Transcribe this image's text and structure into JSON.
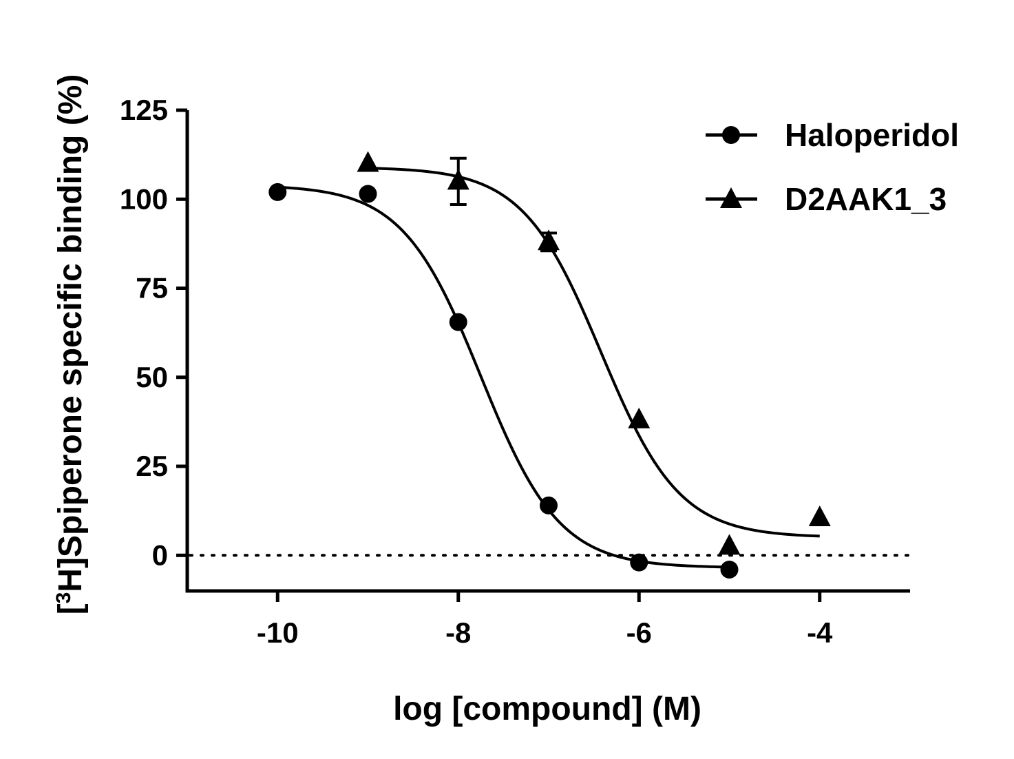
{
  "chart_data": {
    "type": "scatter",
    "title": "",
    "xlabel": "log [compound] (M)",
    "ylabel": "Spiperone specific binding (%)",
    "ylabel_prefix": "[",
    "ylabel_superscript": "3",
    "ylabel_element": "H]",
    "xlim": [
      -11.0,
      -3.0
    ],
    "ylim": [
      -10,
      125
    ],
    "x_ticks": [
      -10,
      -8,
      -6,
      -4
    ],
    "x_tick_labels": [
      "-10",
      "-8",
      "-6",
      "-4"
    ],
    "y_ticks": [
      0,
      25,
      50,
      75,
      100,
      125
    ],
    "y_tick_labels": [
      "0",
      "25",
      "50",
      "75",
      "100",
      "125"
    ],
    "reference_line": {
      "y": 0,
      "style": "dotted"
    },
    "legend_position": "top-right",
    "grid": false,
    "series": [
      {
        "name": "Haloperidol",
        "marker": "circle",
        "points": [
          {
            "x": -10,
            "y": 102,
            "err": 0
          },
          {
            "x": -9,
            "y": 101.5,
            "err": 0
          },
          {
            "x": -8,
            "y": 65.5,
            "err": 0
          },
          {
            "x": -7,
            "y": 14,
            "err": 0
          },
          {
            "x": -6,
            "y": -2,
            "err": 0
          },
          {
            "x": -5,
            "y": -4,
            "err": 0
          }
        ],
        "fit": {
          "top": 104,
          "bottom": -3.5,
          "logEC50": -7.75,
          "hill": -1.0,
          "x_range": [
            -10,
            -5
          ]
        }
      },
      {
        "name": "D2AAK1_3",
        "marker": "triangle",
        "points": [
          {
            "x": -9,
            "y": 110,
            "err": 0
          },
          {
            "x": -8,
            "y": 105,
            "err": 6.5
          },
          {
            "x": -7,
            "y": 88,
            "err": 2.5
          },
          {
            "x": -6,
            "y": 38,
            "err": 0
          },
          {
            "x": -5,
            "y": 2.5,
            "err": 0
          },
          {
            "x": -4,
            "y": 10.5,
            "err": 0
          }
        ],
        "fit": {
          "top": 109,
          "bottom": 5,
          "logEC50": -6.42,
          "hill": -1.0,
          "x_range": [
            -9,
            -4
          ]
        }
      }
    ]
  }
}
